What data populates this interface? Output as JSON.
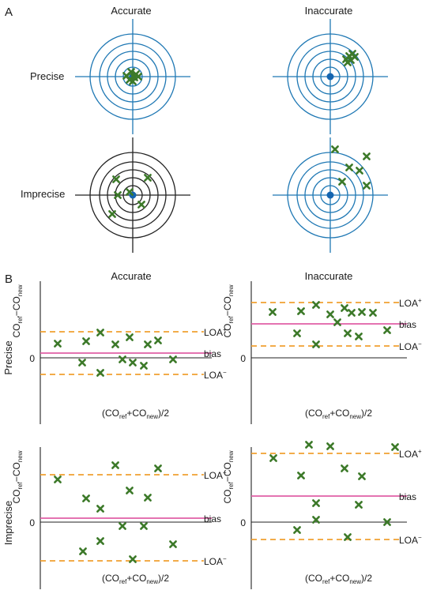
{
  "panels": {
    "a_label": "A",
    "b_label": "B"
  },
  "section_a": {
    "columns": [
      "Accurate",
      "Inaccurate"
    ],
    "rows": [
      "Precise",
      "Imprecise"
    ]
  },
  "section_b": {
    "columns": [
      "Accurate",
      "Inaccurate"
    ],
    "rows": [
      "Precise",
      "Imprecise"
    ],
    "y_axis": {
      "main": "CO",
      "sub_ref": "ref",
      "minus": "−",
      "main2": "CO",
      "sub_new": "new"
    },
    "x_axis": {
      "open": "(CO",
      "sub_ref": "ref",
      "plus": "+CO",
      "sub_new": "new",
      "close": ")/2"
    },
    "zero_label": "0",
    "bias_label": "bias",
    "loa_plus": {
      "base": "LOA",
      "sup": "+"
    },
    "loa_minus": {
      "base": "LOA",
      "sup": "−"
    }
  },
  "colors": {
    "target_blue": "#1f78b4",
    "target_black": "#222222",
    "marker_green": "#3d7a2a",
    "bias_pink": "#e05fa6",
    "loa_orange": "#f0a030",
    "center_dot": "#1565b0"
  },
  "icons": {
    "marker": "x-mark-icon",
    "center": "filled-dot-icon"
  }
}
